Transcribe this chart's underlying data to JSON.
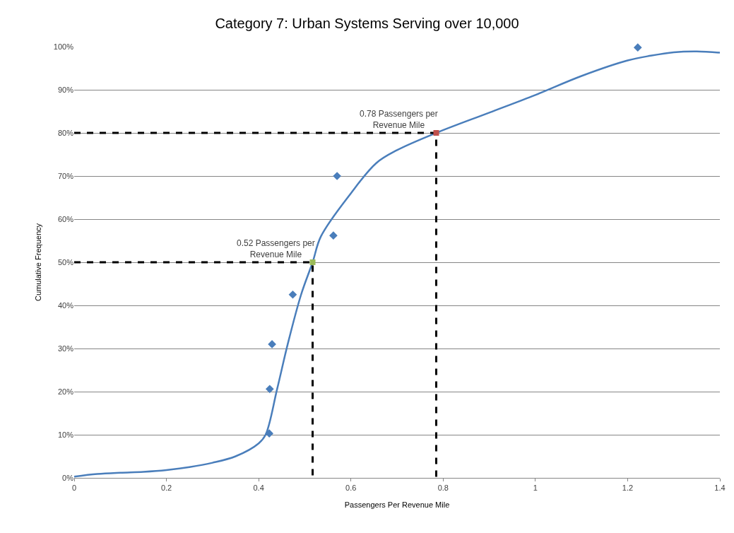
{
  "chart_data": {
    "type": "scatter",
    "title": "Category 7: Urban Systems Serving over 10,000",
    "xlabel": "Passengers Per Revenue Mile",
    "ylabel": "Cumulative Frequency",
    "xlim": [
      0,
      1.4
    ],
    "xticks": [
      0,
      0.2,
      0.4,
      0.6,
      0.8,
      1,
      1.2,
      1.4
    ],
    "ylim": [
      0,
      100
    ],
    "yticks": [
      {
        "value": 0,
        "label": "0%"
      },
      {
        "value": 10,
        "label": "10%"
      },
      {
        "value": 20,
        "label": "20%"
      },
      {
        "value": 30,
        "label": "30%"
      },
      {
        "value": 40,
        "label": "40%"
      },
      {
        "value": 50,
        "label": "50%"
      },
      {
        "value": 60,
        "label": "60%"
      },
      {
        "value": 70,
        "label": "70%"
      },
      {
        "value": 80,
        "label": "80%"
      },
      {
        "value": 90,
        "label": "90%"
      },
      {
        "value": 100,
        "label": "100%"
      }
    ],
    "grid": "y",
    "series": [
      {
        "type": "line",
        "color": "#4a7ebb",
        "line_style": "solid",
        "marker": "none",
        "x": [
          0,
          0.05,
          0.1,
          0.15,
          0.2,
          0.25,
          0.3,
          0.35,
          0.4,
          0.415,
          0.44,
          0.463,
          0.492,
          0.517,
          0.535,
          0.6,
          0.655,
          0.7,
          0.785,
          0.9,
          1.0,
          1.1,
          1.2,
          1.25,
          1.3,
          1.35,
          1.4
        ],
        "values": [
          0.3,
          0.9,
          1.2,
          1.4,
          1.8,
          2.5,
          3.5,
          5.0,
          8.0,
          10,
          20.6,
          31,
          42.5,
          50,
          56,
          66,
          73,
          76,
          80,
          84.7,
          88.8,
          93.2,
          96.8,
          97.9,
          98.7,
          98.9,
          98.6
        ]
      },
      {
        "color": "#4a7ebb",
        "marker": "diamond",
        "x": [
          0.423,
          0.424,
          0.429,
          0.474,
          0.562,
          0.57,
          1.222
        ],
        "values": [
          10.3,
          20.6,
          31,
          42.5,
          56.2,
          70,
          99.8
        ]
      },
      {
        "type": "line",
        "color": "#000000",
        "line_style": "dashed",
        "marker": "none",
        "x": [
          0,
          0.517,
          0.517
        ],
        "values": [
          50,
          50,
          0
        ]
      },
      {
        "type": "line",
        "color": "#000000",
        "line_style": "dashed",
        "marker": "none",
        "x": [
          0,
          0.785,
          0.785
        ],
        "values": [
          80,
          80,
          0
        ]
      },
      {
        "type": "scatter",
        "color": "#9bbb59",
        "marker": "square",
        "x": [
          0.517
        ],
        "values": [
          50
        ]
      },
      {
        "type": "scatter",
        "color": "#c0504d",
        "marker": "square",
        "x": [
          0.785
        ],
        "values": [
          80
        ]
      }
    ],
    "annotations": [
      {
        "text": "0.52 Passengers per\nRevenue Mile",
        "x": 0.517,
        "y": 50
      },
      {
        "text": "0.78 Passengers per\nRevenue Mile",
        "x": 0.785,
        "y": 80
      }
    ]
  }
}
